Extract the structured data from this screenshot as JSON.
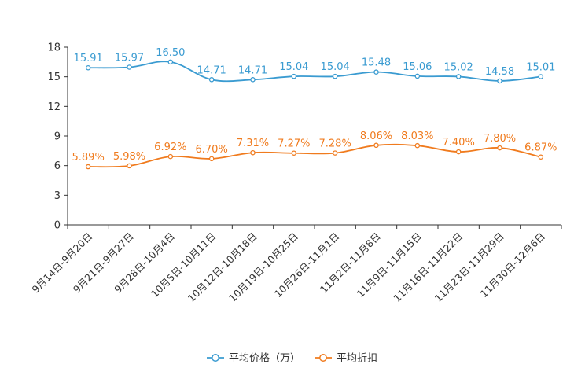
{
  "chart_data": {
    "type": "line",
    "title": "",
    "xlabel": "",
    "ylabel": "",
    "ylim": [
      0,
      18
    ],
    "yticks": [
      0,
      3,
      6,
      9,
      12,
      15,
      18
    ],
    "grid": false,
    "legend_position": "bottom-center",
    "categories": [
      "9月14日-9月20日",
      "9月21日-9月27日",
      "9月28日-10月4日",
      "10月5日-10月11日",
      "10月12日-10月18日",
      "10月19日-10月25日",
      "10月26日-11月1日",
      "11月2日-11月8日",
      "11月9日-11月15日",
      "11月16日-11月22日",
      "11月23日-11月29日",
      "11月30日-12月6日"
    ],
    "series": [
      {
        "name": "平均价格（万）",
        "color": "#3a9bd1",
        "values": [
          15.91,
          15.97,
          16.5,
          14.71,
          14.71,
          15.04,
          15.04,
          15.48,
          15.06,
          15.02,
          14.58,
          15.01
        ],
        "labels": [
          "15.91",
          "15.97",
          "16.50",
          "14.71",
          "14.71",
          "15.04",
          "15.04",
          "15.48",
          "15.06",
          "15.02",
          "14.58",
          "15.01"
        ]
      },
      {
        "name": "平均折扣",
        "color": "#f07b1e",
        "values": [
          5.89,
          5.98,
          6.92,
          6.7,
          7.31,
          7.27,
          7.28,
          8.06,
          8.03,
          7.4,
          7.8,
          6.87
        ],
        "labels": [
          "5.89%",
          "5.98%",
          "6.92%",
          "6.70%",
          "7.31%",
          "7.27%",
          "7.28%",
          "8.06%",
          "8.03%",
          "7.40%",
          "7.80%",
          "6.87%"
        ]
      }
    ]
  }
}
